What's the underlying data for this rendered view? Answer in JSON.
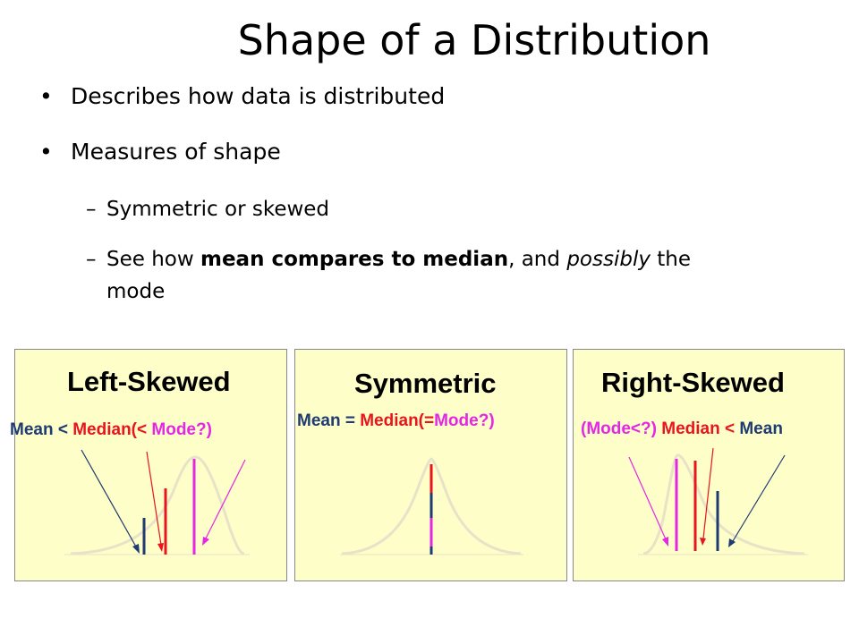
{
  "slide": {
    "title": "Shape of a Distribution",
    "bullets": {
      "b1": "Describes how data is distributed",
      "b2": "Measures of shape",
      "sub1": "Symmetric or skewed",
      "sub2_a": "See how ",
      "sub2_b": "mean compares to median",
      "sub2_c": ", and ",
      "sub2_d": "possibly",
      "sub2_e": " the",
      "sub2_f": "mode"
    },
    "bullet_symbol": "•",
    "dash_symbol": "–"
  },
  "panels": {
    "left": {
      "title": "Left-Skewed",
      "mean": "Mean",
      "op1": " < ",
      "median": "Median(<",
      "mode": " Mode?)"
    },
    "middle": {
      "title": "Symmetric",
      "mean": "Mean",
      "op1": " = ",
      "median": "Median(=",
      "mode": "Mode?)"
    },
    "right": {
      "title": "Right-Skewed",
      "mode": "(Mode<?)",
      "median": " Median",
      "op1": " < ",
      "mean": "Mean"
    }
  },
  "colors": {
    "panel_bg": "#fefec8",
    "mean": "#1f3b73",
    "median": "#e8141e",
    "mode": "#e526e5",
    "curve": "#e8e2c8"
  }
}
